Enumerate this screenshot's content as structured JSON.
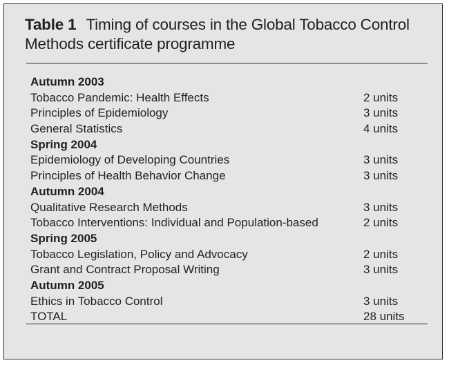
{
  "table": {
    "label": "Table 1",
    "title": "Timing of courses in the Global Tobacco Control Methods certificate programme",
    "rows": [
      {
        "type": "term",
        "course": "Autumn 2003",
        "units": ""
      },
      {
        "type": "course",
        "course": "Tobacco Pandemic: Health Effects",
        "units": "2 units"
      },
      {
        "type": "course",
        "course": "Principles of Epidemiology",
        "units": "3 units"
      },
      {
        "type": "course",
        "course": "General Statistics",
        "units": "4 units"
      },
      {
        "type": "term",
        "course": "Spring 2004",
        "units": ""
      },
      {
        "type": "course",
        "course": "Epidemiology of Developing Countries",
        "units": "3 units"
      },
      {
        "type": "course",
        "course": "Principles of Health Behavior Change",
        "units": "3 units"
      },
      {
        "type": "term",
        "course": "Autumn 2004",
        "units": ""
      },
      {
        "type": "course",
        "course": "Qualitative Research Methods",
        "units": "3 units"
      },
      {
        "type": "course",
        "course": "Tobacco Interventions: Individual and Population-based",
        "units": "2 units"
      },
      {
        "type": "term",
        "course": "Spring 2005",
        "units": ""
      },
      {
        "type": "course",
        "course": "Tobacco Legislation, Policy and Advocacy",
        "units": "2 units"
      },
      {
        "type": "course",
        "course": "Grant and Contract Proposal Writing",
        "units": "3 units"
      },
      {
        "type": "term",
        "course": "Autumn 2005",
        "units": ""
      },
      {
        "type": "course",
        "course": "Ethics in Tobacco Control",
        "units": "3 units"
      },
      {
        "type": "total",
        "course": "TOTAL",
        "units": "28 units"
      }
    ]
  },
  "colors": {
    "panel_background": "#e4e5e6",
    "text": "#231f20",
    "rule": "#2a2a2a"
  }
}
